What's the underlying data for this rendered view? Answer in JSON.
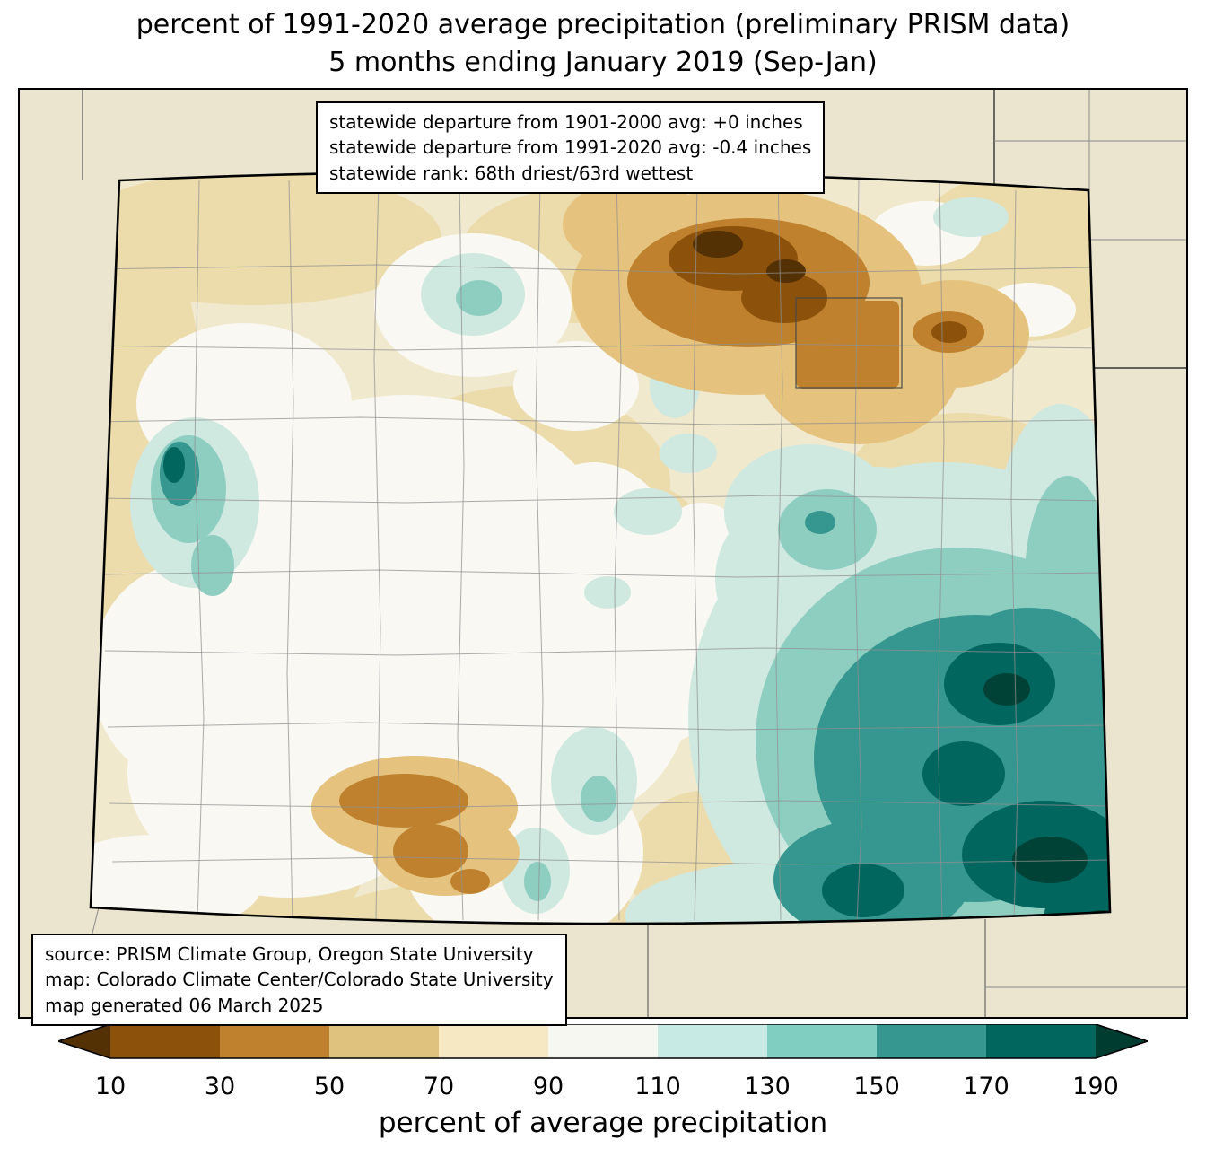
{
  "title": {
    "line1": "percent of 1991-2020 average precipitation (preliminary PRISM data)",
    "line2": "5 months ending January 2019 (Sep-Jan)"
  },
  "stats_box": {
    "line1": "statewide departure from 1901-2000 avg: +0 inches",
    "line2": "statewide departure from 1991-2020 avg: -0.4 inches",
    "line3": "statewide rank: 68th driest/63rd wettest"
  },
  "source_box": {
    "line1": "source: PRISM Climate Group, Oregon State University",
    "line2": "map: Colorado Climate Center/Colorado State University",
    "line3": "map generated 06 March 2025"
  },
  "colorbar": {
    "label": "percent of average precipitation",
    "ticks": [
      "10",
      "30",
      "50",
      "70",
      "90",
      "110",
      "130",
      "150",
      "170",
      "190"
    ],
    "colors": [
      "#543005",
      "#8c510a",
      "#bf812d",
      "#dfc27d",
      "#f6e8c3",
      "#f7f7f2",
      "#c7eae5",
      "#80cdc1",
      "#35978f",
      "#01665e",
      "#003c30"
    ]
  },
  "map": {
    "region_name": "Colorado",
    "background_color": "#ebe5d0",
    "dry_extreme_color": "#543005",
    "wet_extreme_color": "#003c30"
  }
}
